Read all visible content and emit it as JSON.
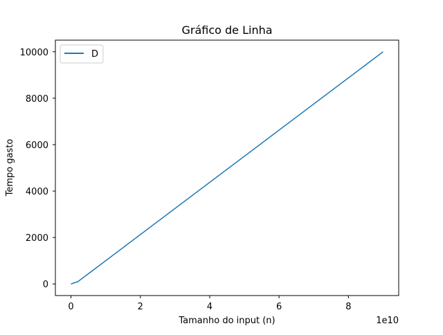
{
  "chart_data": {
    "type": "line",
    "title": "Gráfico de Linha",
    "xlabel": "Tamanho do input (n)",
    "ylabel": "Tempo gasto",
    "x_offset_label": "1e10",
    "x_scale": 10000000000,
    "xlim": [
      -4500000000,
      94500000000
    ],
    "ylim": [
      -500,
      10500
    ],
    "x_ticks": [
      {
        "value": 0,
        "label": "0"
      },
      {
        "value": 20000000000,
        "label": "2"
      },
      {
        "value": 40000000000,
        "label": "4"
      },
      {
        "value": 60000000000,
        "label": "6"
      },
      {
        "value": 80000000000,
        "label": "8"
      }
    ],
    "y_ticks": [
      {
        "value": 0,
        "label": "0"
      },
      {
        "value": 2000,
        "label": "2000"
      },
      {
        "value": 4000,
        "label": "4000"
      },
      {
        "value": 6000,
        "label": "6000"
      },
      {
        "value": 8000,
        "label": "8000"
      },
      {
        "value": 10000,
        "label": "10000"
      }
    ],
    "grid": false,
    "legend": {
      "placement": "top-left"
    },
    "series": [
      {
        "name": "D",
        "color": "#1f77b4",
        "x": [
          0,
          2000000000,
          90000000000
        ],
        "y": [
          0,
          100,
          10000
        ]
      }
    ]
  }
}
